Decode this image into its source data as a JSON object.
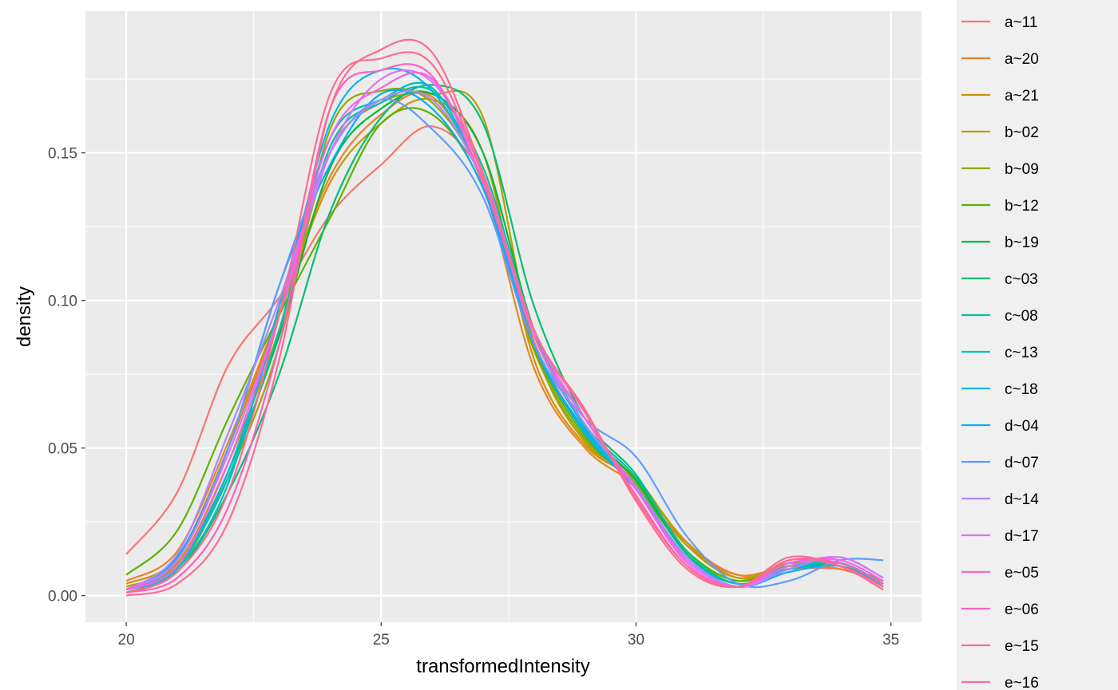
{
  "chart_data": {
    "type": "line",
    "title": "",
    "xlabel": "transformedIntensity",
    "ylabel": "density",
    "xlim": [
      19.2,
      35.6
    ],
    "ylim": [
      -0.009,
      0.198
    ],
    "x_ticks": [
      "20",
      "25",
      "30",
      "35"
    ],
    "y_ticks": [
      "0.00",
      "0.05",
      "0.10",
      "0.15"
    ],
    "grid": true,
    "panel_background": "#ebebeb",
    "legend_position": "right",
    "x": [
      20,
      21,
      22,
      23,
      24,
      25,
      26,
      27,
      28,
      29,
      30,
      31,
      32,
      33,
      34,
      34.85
    ],
    "series": [
      {
        "name": "a~11",
        "color": "#F8766D",
        "values": [
          0.014,
          0.035,
          0.078,
          0.101,
          0.129,
          0.146,
          0.159,
          0.141,
          0.086,
          0.056,
          0.039,
          0.018,
          0.007,
          0.009,
          0.009,
          0.005
        ]
      },
      {
        "name": "a~20",
        "color": "#E88526",
        "values": [
          0.005,
          0.015,
          0.052,
          0.096,
          0.142,
          0.163,
          0.169,
          0.139,
          0.077,
          0.05,
          0.037,
          0.017,
          0.007,
          0.01,
          0.009,
          0.004
        ]
      },
      {
        "name": "a~21",
        "color": "#D39200",
        "values": [
          0.004,
          0.013,
          0.05,
          0.095,
          0.14,
          0.16,
          0.168,
          0.15,
          0.08,
          0.051,
          0.039,
          0.018,
          0.006,
          0.01,
          0.01,
          0.005
        ]
      },
      {
        "name": "b~02",
        "color": "#B79F00",
        "values": [
          0.003,
          0.011,
          0.045,
          0.09,
          0.15,
          0.167,
          0.17,
          0.162,
          0.085,
          0.052,
          0.04,
          0.017,
          0.006,
          0.011,
          0.01,
          0.005
        ]
      },
      {
        "name": "b~09",
        "color": "#93AA00",
        "values": [
          0.002,
          0.009,
          0.04,
          0.085,
          0.158,
          0.171,
          0.167,
          0.14,
          0.083,
          0.053,
          0.038,
          0.015,
          0.005,
          0.011,
          0.011,
          0.004
        ]
      },
      {
        "name": "b~12",
        "color": "#5EB300",
        "values": [
          0.007,
          0.022,
          0.06,
          0.095,
          0.128,
          0.16,
          0.163,
          0.138,
          0.084,
          0.054,
          0.037,
          0.015,
          0.005,
          0.01,
          0.011,
          0.004
        ]
      },
      {
        "name": "b~19",
        "color": "#00BA38",
        "values": [
          0.002,
          0.01,
          0.042,
          0.088,
          0.145,
          0.165,
          0.17,
          0.15,
          0.09,
          0.057,
          0.039,
          0.014,
          0.004,
          0.009,
          0.011,
          0.004
        ]
      },
      {
        "name": "c~03",
        "color": "#00BF74",
        "values": [
          0.001,
          0.008,
          0.035,
          0.075,
          0.13,
          0.162,
          0.173,
          0.16,
          0.098,
          0.06,
          0.041,
          0.014,
          0.004,
          0.009,
          0.01,
          0.003
        ]
      },
      {
        "name": "c~08",
        "color": "#00C19F",
        "values": [
          0.002,
          0.01,
          0.04,
          0.09,
          0.152,
          0.167,
          0.171,
          0.145,
          0.09,
          0.058,
          0.04,
          0.015,
          0.004,
          0.01,
          0.011,
          0.004
        ]
      },
      {
        "name": "c~13",
        "color": "#00BFC4",
        "values": [
          0.001,
          0.009,
          0.038,
          0.098,
          0.155,
          0.168,
          0.172,
          0.14,
          0.088,
          0.057,
          0.037,
          0.013,
          0.004,
          0.009,
          0.011,
          0.003
        ]
      },
      {
        "name": "c~18",
        "color": "#00B9E3",
        "values": [
          0.002,
          0.01,
          0.042,
          0.095,
          0.16,
          0.178,
          0.171,
          0.14,
          0.085,
          0.056,
          0.036,
          0.012,
          0.003,
          0.009,
          0.011,
          0.003
        ]
      },
      {
        "name": "d~04",
        "color": "#00ADFA",
        "values": [
          0.002,
          0.013,
          0.05,
          0.105,
          0.146,
          0.17,
          0.165,
          0.138,
          0.085,
          0.055,
          0.036,
          0.012,
          0.003,
          0.008,
          0.01,
          0.003
        ]
      },
      {
        "name": "d~07",
        "color": "#619CFF",
        "values": [
          0.002,
          0.012,
          0.05,
          0.105,
          0.15,
          0.168,
          0.158,
          0.135,
          0.085,
          0.06,
          0.047,
          0.02,
          0.004,
          0.005,
          0.012,
          0.012
        ]
      },
      {
        "name": "d~14",
        "color": "#AE87FF",
        "values": [
          0.002,
          0.014,
          0.055,
          0.1,
          0.15,
          0.168,
          0.168,
          0.14,
          0.088,
          0.058,
          0.037,
          0.013,
          0.003,
          0.009,
          0.013,
          0.006
        ]
      },
      {
        "name": "d~17",
        "color": "#DB72FB",
        "values": [
          0.002,
          0.012,
          0.048,
          0.095,
          0.15,
          0.175,
          0.174,
          0.143,
          0.09,
          0.06,
          0.036,
          0.012,
          0.003,
          0.01,
          0.013,
          0.006
        ]
      },
      {
        "name": "e~05",
        "color": "#F564E3",
        "values": [
          0.002,
          0.01,
          0.045,
          0.095,
          0.155,
          0.172,
          0.175,
          0.142,
          0.088,
          0.06,
          0.036,
          0.011,
          0.003,
          0.011,
          0.012,
          0.005
        ]
      },
      {
        "name": "e~06",
        "color": "#FF61C3",
        "values": [
          0.001,
          0.006,
          0.03,
          0.085,
          0.165,
          0.178,
          0.176,
          0.14,
          0.09,
          0.062,
          0.034,
          0.01,
          0.003,
          0.012,
          0.011,
          0.004
        ]
      },
      {
        "name": "e~15",
        "color": "#FF6C91",
        "values": [
          0.001,
          0.008,
          0.035,
          0.095,
          0.17,
          0.182,
          0.18,
          0.142,
          0.09,
          0.062,
          0.033,
          0.01,
          0.003,
          0.012,
          0.01,
          0.003
        ]
      },
      {
        "name": "e~16",
        "color": "#FF6C91",
        "values": [
          0.0,
          0.004,
          0.025,
          0.08,
          0.165,
          0.185,
          0.184,
          0.143,
          0.09,
          0.063,
          0.032,
          0.009,
          0.003,
          0.013,
          0.01,
          0.002
        ]
      }
    ]
  }
}
